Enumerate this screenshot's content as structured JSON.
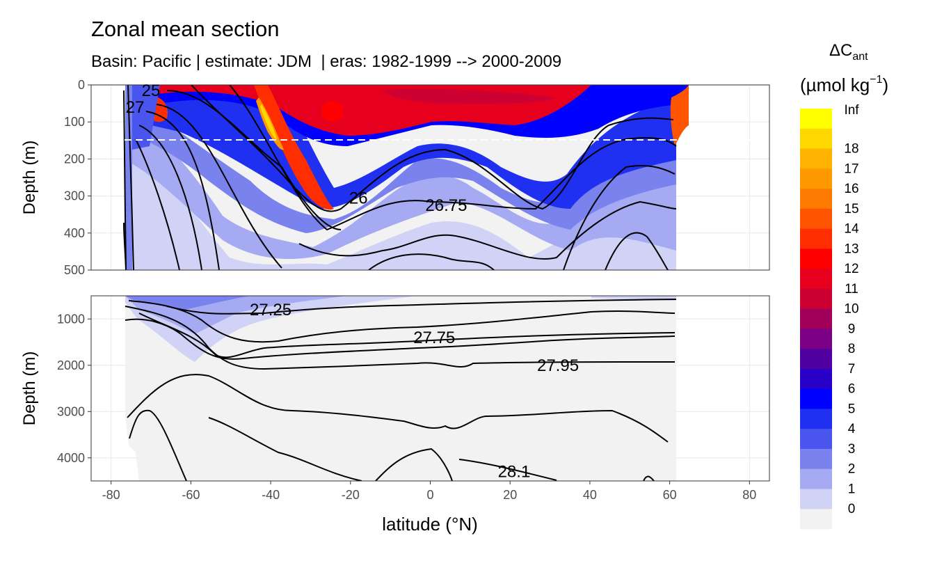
{
  "header": {
    "title": "Zonal mean section",
    "subtitle": "Basin: Pacific | estimate: JDM  | eras: 1982-1999 --> 2000-2009"
  },
  "chart_data": {
    "type": "heatmap",
    "description_kind": "filled contour section with isopycnal contour lines",
    "xlabel": "latitude (°N)",
    "xlim": [
      -85,
      85
    ],
    "xticks": [
      -80,
      -60,
      -40,
      -20,
      0,
      20,
      40,
      60,
      80
    ],
    "panels": [
      {
        "name": "upper",
        "ylabel": "Depth (m)",
        "ylim": [
          0,
          500
        ],
        "yticks": [
          0,
          100,
          200,
          300,
          400,
          500
        ],
        "reference_line_depth": 150,
        "contour_labels": [
          {
            "text": "26",
            "lat": -18,
            "depth": 305
          },
          {
            "text": "26.75",
            "lat": 4,
            "depth": 325
          },
          {
            "text": "27",
            "lat": -74,
            "depth": 60
          },
          {
            "text": "25",
            "lat": -70,
            "depth": 15
          }
        ]
      },
      {
        "name": "lower",
        "ylabel": "Depth (m)",
        "ylim": [
          500,
          4500
        ],
        "yticks": [
          1000,
          2000,
          3000,
          4000
        ],
        "contour_labels": [
          {
            "text": "27.25",
            "lat": -40,
            "depth": 800
          },
          {
            "text": "27.75",
            "lat": 1,
            "depth": 1400
          },
          {
            "text": "27.95",
            "lat": 32,
            "depth": 2000
          },
          {
            "text": "28.1",
            "lat": 21,
            "depth": 4300
          }
        ]
      }
    ],
    "colorbar": {
      "title_main": "ΔC",
      "title_sub": "ant",
      "units_prefix": "(µmol kg",
      "units_exp": "−1",
      "units_suffix": ")",
      "labels": [
        "Inf",
        "18",
        "17",
        "16",
        "15",
        "14",
        "13",
        "12",
        "11",
        "10",
        "9",
        "8",
        "7",
        "6",
        "5",
        "4",
        "3",
        "2",
        "1",
        "0"
      ],
      "colors": [
        "#FFFF00",
        "#FFD700",
        "#FFB300",
        "#FF9900",
        "#FF7A00",
        "#FF5500",
        "#FF2E00",
        "#FF0000",
        "#E6001E",
        "#CC0033",
        "#A0005A",
        "#7A0085",
        "#5000A0",
        "#2800C8",
        "#0000FF",
        "#2030F0",
        "#4A55EE",
        "#7A82EE",
        "#A5AAF2",
        "#D0D2F6",
        "#F2F2F2"
      ]
    }
  }
}
